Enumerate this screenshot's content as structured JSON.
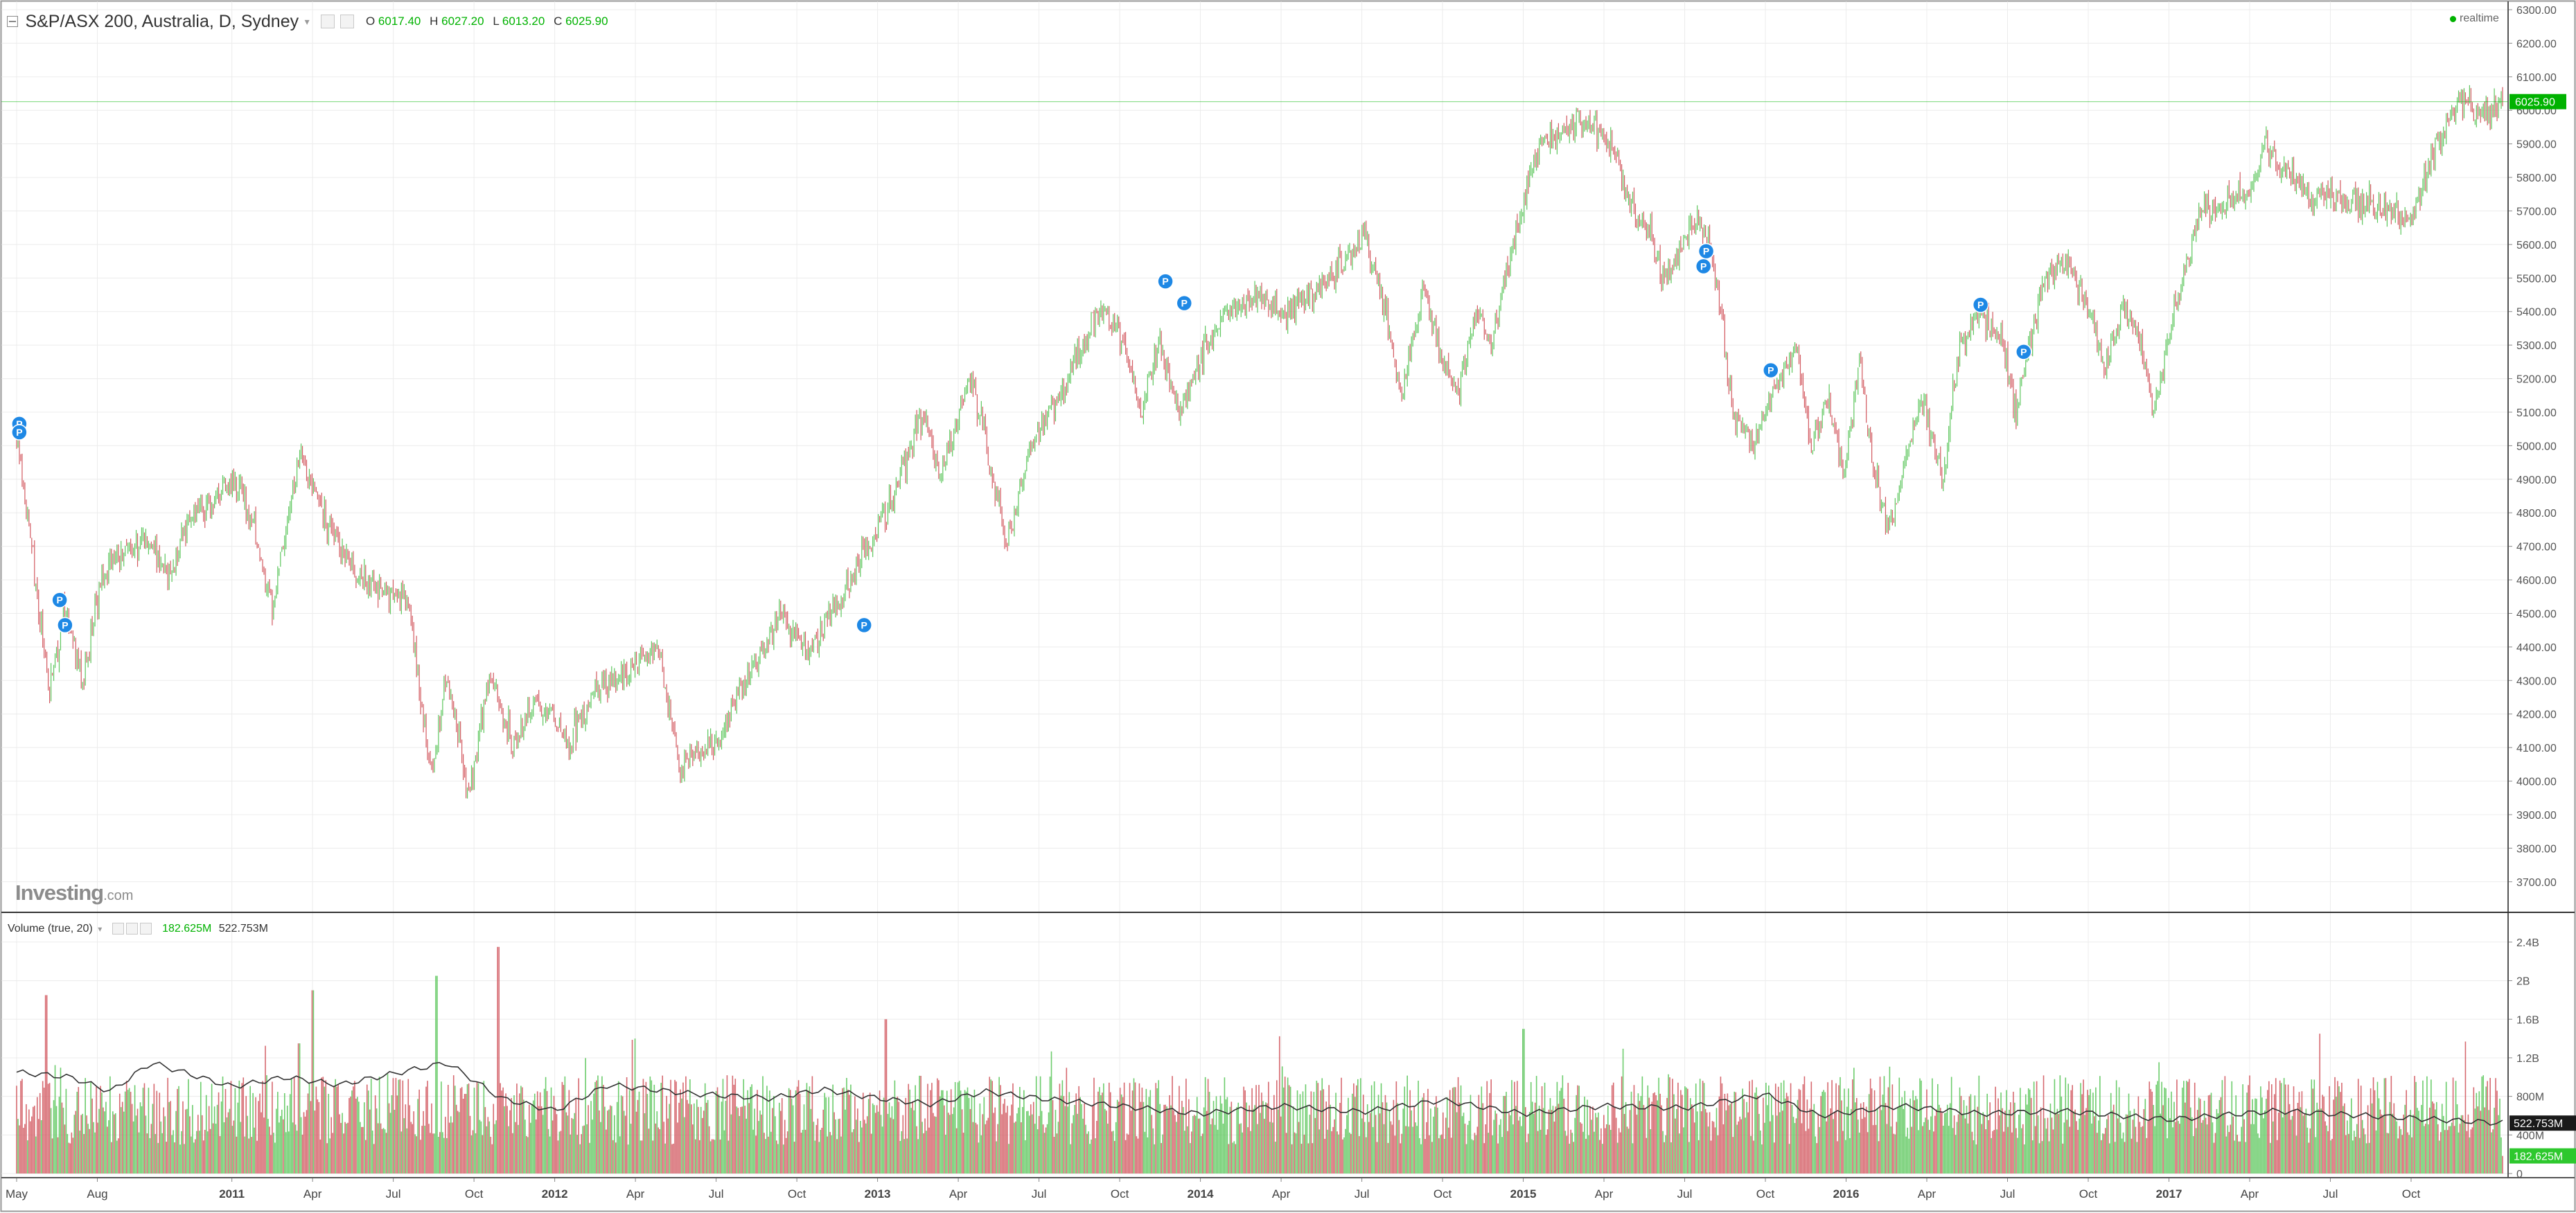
{
  "header": {
    "symbol_title": "S&P/ASX 200, Australia, D, Sydney",
    "o_label": "O",
    "o_value": "6017.40",
    "h_label": "H",
    "h_value": "6027.20",
    "l_label": "L",
    "l_value": "6013.20",
    "c_label": "C",
    "c_value": "6025.90",
    "realtime_label": "realtime"
  },
  "volume_header": {
    "title": "Volume (true, 20)",
    "volume_value": "182.625M",
    "ma_value": "522.753M"
  },
  "watermark": {
    "brand": "Investing",
    "suffix": ".com"
  },
  "colors": {
    "up": "#5cc65c",
    "down": "#d2585f",
    "price_line": "#00b200",
    "marker": "#1e88e5",
    "ma_line": "#333333",
    "grid": "#ececec"
  },
  "chart_data": [
    {
      "type": "candlestick",
      "interval": "D",
      "ylim": [
        3650,
        6300
      ],
      "ticks": [
        "3700.00",
        "3800.00",
        "3900.00",
        "4000.00",
        "4100.00",
        "4200.00",
        "4300.00",
        "4400.00",
        "4500.00",
        "4600.00",
        "4700.00",
        "4800.00",
        "4900.00",
        "5000.00",
        "5100.00",
        "5200.00",
        "5300.00",
        "5400.00",
        "5500.00",
        "5600.00",
        "5700.00",
        "5800.00",
        "5900.00",
        "6000.00",
        "6100.00",
        "6200.00",
        "6300.00"
      ],
      "last_price_label": "6025.90",
      "last_price": 6025.9,
      "x_tick_labels": [
        "May",
        "Aug",
        "2011",
        "Apr",
        "Jul",
        "Oct",
        "2012",
        "Apr",
        "Jul",
        "Oct",
        "2013",
        "Apr",
        "Jul",
        "Oct",
        "2014",
        "Apr",
        "Jul",
        "Oct",
        "2015",
        "Apr",
        "Jul",
        "Oct",
        "2016",
        "Apr",
        "Jul",
        "Oct",
        "2017",
        "Apr",
        "Jul",
        "Oct"
      ],
      "x_tick_months": [
        0,
        3,
        8,
        11,
        14,
        17,
        20,
        23,
        26,
        29,
        32,
        35,
        38,
        41,
        44,
        47,
        50,
        53,
        56,
        59,
        62,
        65,
        68,
        71,
        74,
        77,
        80,
        83,
        86,
        89
      ],
      "close_path": [
        {
          "t": 0,
          "v": 5020
        },
        {
          "t": 0.7,
          "v": 4600
        },
        {
          "t": 1.2,
          "v": 4250
        },
        {
          "t": 1.8,
          "v": 4520
        },
        {
          "t": 2.4,
          "v": 4300
        },
        {
          "t": 3.2,
          "v": 4620
        },
        {
          "t": 4.2,
          "v": 4700
        },
        {
          "t": 5.0,
          "v": 4720
        },
        {
          "t": 5.7,
          "v": 4600
        },
        {
          "t": 6.4,
          "v": 4790
        },
        {
          "t": 7.2,
          "v": 4830
        },
        {
          "t": 8.3,
          "v": 4900
        },
        {
          "t": 8.9,
          "v": 4720
        },
        {
          "t": 9.5,
          "v": 4520
        },
        {
          "t": 10.5,
          "v": 4960
        },
        {
          "t": 11.4,
          "v": 4800
        },
        {
          "t": 12.4,
          "v": 4650
        },
        {
          "t": 13.3,
          "v": 4570
        },
        {
          "t": 14.5,
          "v": 4560
        },
        {
          "t": 15.4,
          "v": 4000
        },
        {
          "t": 16.0,
          "v": 4330
        },
        {
          "t": 16.8,
          "v": 3950
        },
        {
          "t": 17.6,
          "v": 4320
        },
        {
          "t": 18.5,
          "v": 4100
        },
        {
          "t": 19.3,
          "v": 4250
        },
        {
          "t": 20.5,
          "v": 4120
        },
        {
          "t": 21.6,
          "v": 4270
        },
        {
          "t": 22.8,
          "v": 4330
        },
        {
          "t": 23.8,
          "v": 4400
        },
        {
          "t": 24.6,
          "v": 4050
        },
        {
          "t": 25.3,
          "v": 4070
        },
        {
          "t": 26.2,
          "v": 4150
        },
        {
          "t": 27.3,
          "v": 4330
        },
        {
          "t": 28.4,
          "v": 4500
        },
        {
          "t": 29.4,
          "v": 4380
        },
        {
          "t": 30.3,
          "v": 4500
        },
        {
          "t": 31.6,
          "v": 4700
        },
        {
          "t": 32.6,
          "v": 4850
        },
        {
          "t": 33.7,
          "v": 5100
        },
        {
          "t": 34.3,
          "v": 4900
        },
        {
          "t": 35.4,
          "v": 5200
        },
        {
          "t": 35.8,
          "v": 5100
        },
        {
          "t": 36.8,
          "v": 4700
        },
        {
          "t": 37.7,
          "v": 5000
        },
        {
          "t": 38.8,
          "v": 5150
        },
        {
          "t": 39.6,
          "v": 5300
        },
        {
          "t": 40.4,
          "v": 5420
        },
        {
          "t": 41.2,
          "v": 5300
        },
        {
          "t": 41.8,
          "v": 5080
        },
        {
          "t": 42.5,
          "v": 5320
        },
        {
          "t": 43.2,
          "v": 5100
        },
        {
          "t": 44.2,
          "v": 5300
        },
        {
          "t": 45.2,
          "v": 5420
        },
        {
          "t": 46.2,
          "v": 5440
        },
        {
          "t": 47.2,
          "v": 5400
        },
        {
          "t": 48.2,
          "v": 5440
        },
        {
          "t": 49.2,
          "v": 5550
        },
        {
          "t": 50.1,
          "v": 5620
        },
        {
          "t": 50.9,
          "v": 5400
        },
        {
          "t": 51.5,
          "v": 5150
        },
        {
          "t": 52.3,
          "v": 5480
        },
        {
          "t": 53.0,
          "v": 5260
        },
        {
          "t": 53.6,
          "v": 5150
        },
        {
          "t": 54.2,
          "v": 5400
        },
        {
          "t": 54.8,
          "v": 5300
        },
        {
          "t": 55.6,
          "v": 5600
        },
        {
          "t": 56.6,
          "v": 5900
        },
        {
          "t": 57.4,
          "v": 5930
        },
        {
          "t": 58.3,
          "v": 5970
        },
        {
          "t": 59.3,
          "v": 5900
        },
        {
          "t": 60.0,
          "v": 5720
        },
        {
          "t": 60.7,
          "v": 5630
        },
        {
          "t": 61.3,
          "v": 5480
        },
        {
          "t": 62.0,
          "v": 5600
        },
        {
          "t": 62.6,
          "v": 5680
        },
        {
          "t": 63.2,
          "v": 5500
        },
        {
          "t": 63.8,
          "v": 5100
        },
        {
          "t": 64.4,
          "v": 5000
        },
        {
          "t": 65.3,
          "v": 5150
        },
        {
          "t": 66.2,
          "v": 5300
        },
        {
          "t": 66.7,
          "v": 5000
        },
        {
          "t": 67.3,
          "v": 5150
        },
        {
          "t": 67.9,
          "v": 4900
        },
        {
          "t": 68.5,
          "v": 5250
        },
        {
          "t": 69.0,
          "v": 4950
        },
        {
          "t": 69.6,
          "v": 4750
        },
        {
          "t": 70.3,
          "v": 5000
        },
        {
          "t": 70.8,
          "v": 5150
        },
        {
          "t": 71.6,
          "v": 4900
        },
        {
          "t": 72.2,
          "v": 5300
        },
        {
          "t": 73.0,
          "v": 5400
        },
        {
          "t": 73.8,
          "v": 5300
        },
        {
          "t": 74.3,
          "v": 5100
        },
        {
          "t": 74.8,
          "v": 5300
        },
        {
          "t": 75.4,
          "v": 5500
        },
        {
          "t": 76.2,
          "v": 5550
        },
        {
          "t": 77.0,
          "v": 5400
        },
        {
          "t": 77.6,
          "v": 5230
        },
        {
          "t": 78.3,
          "v": 5430
        },
        {
          "t": 79.0,
          "v": 5300
        },
        {
          "t": 79.4,
          "v": 5100
        },
        {
          "t": 80.2,
          "v": 5400
        },
        {
          "t": 81.2,
          "v": 5700
        },
        {
          "t": 82.1,
          "v": 5720
        },
        {
          "t": 83.0,
          "v": 5750
        },
        {
          "t": 83.6,
          "v": 5900
        },
        {
          "t": 84.4,
          "v": 5800
        },
        {
          "t": 85.2,
          "v": 5750
        },
        {
          "t": 86.4,
          "v": 5730
        },
        {
          "t": 87.4,
          "v": 5730
        },
        {
          "t": 88.4,
          "v": 5700
        },
        {
          "t": 89.0,
          "v": 5680
        },
        {
          "t": 90.0,
          "v": 5900
        },
        {
          "t": 90.8,
          "v": 6030
        },
        {
          "t": 91.5,
          "v": 5980
        },
        {
          "t": 92.4,
          "v": 6025
        }
      ],
      "markers": [
        {
          "t": 0.1,
          "v": 5065,
          "label": "P"
        },
        {
          "t": 0.1,
          "v": 5040,
          "label": "P"
        },
        {
          "t": 1.6,
          "v": 4540,
          "label": "P"
        },
        {
          "t": 1.8,
          "v": 4465,
          "label": "P"
        },
        {
          "t": 31.5,
          "v": 4465,
          "label": "P"
        },
        {
          "t": 42.7,
          "v": 5490,
          "label": "P"
        },
        {
          "t": 43.4,
          "v": 5425,
          "label": "P"
        },
        {
          "t": 62.8,
          "v": 5580,
          "label": "P"
        },
        {
          "t": 62.7,
          "v": 5535,
          "label": "P"
        },
        {
          "t": 65.2,
          "v": 5225,
          "label": "P"
        },
        {
          "t": 73.0,
          "v": 5420,
          "label": "P"
        },
        {
          "t": 74.6,
          "v": 5280,
          "label": "P"
        }
      ]
    },
    {
      "type": "bar",
      "title": "Volume (true, 20)",
      "ylim": [
        0,
        2500000000
      ],
      "tick_labels": [
        "0",
        "400M",
        "800M",
        "1.2B",
        "1.6B",
        "2B",
        "2.4B"
      ],
      "tick_values": [
        0,
        400000000,
        800000000,
        1200000000,
        1600000000,
        2000000000,
        2400000000
      ],
      "last_volume_label": "182.625M",
      "last_volume": 182625000,
      "ma_label": "522.753M",
      "ma_value": 522753000,
      "typical_range": [
        300000000,
        1100000000
      ],
      "spikes": [
        {
          "t": 17.9,
          "v": 2350000000
        },
        {
          "t": 15.6,
          "v": 2050000000
        },
        {
          "t": 11.0,
          "v": 1900000000
        },
        {
          "t": 1.1,
          "v": 1850000000
        },
        {
          "t": 32.3,
          "v": 1600000000
        },
        {
          "t": 85.6,
          "v": 1450000000
        },
        {
          "t": 56.0,
          "v": 1500000000
        },
        {
          "t": 10.5,
          "v": 1350000000
        },
        {
          "t": 23.0,
          "v": 1400000000
        }
      ],
      "ma_path": [
        {
          "t": 0,
          "v": 1050000000
        },
        {
          "t": 2,
          "v": 1000000000
        },
        {
          "t": 3.5,
          "v": 850000000
        },
        {
          "t": 5,
          "v": 1150000000
        },
        {
          "t": 8,
          "v": 900000000
        },
        {
          "t": 10,
          "v": 1000000000
        },
        {
          "t": 12,
          "v": 920000000
        },
        {
          "t": 16,
          "v": 1150000000
        },
        {
          "t": 18,
          "v": 780000000
        },
        {
          "t": 20,
          "v": 650000000
        },
        {
          "t": 22,
          "v": 920000000
        },
        {
          "t": 25,
          "v": 830000000
        },
        {
          "t": 28,
          "v": 780000000
        },
        {
          "t": 30,
          "v": 870000000
        },
        {
          "t": 32,
          "v": 780000000
        },
        {
          "t": 34,
          "v": 720000000
        },
        {
          "t": 36,
          "v": 850000000
        },
        {
          "t": 38,
          "v": 780000000
        },
        {
          "t": 41,
          "v": 700000000
        },
        {
          "t": 44,
          "v": 620000000
        },
        {
          "t": 47,
          "v": 700000000
        },
        {
          "t": 50,
          "v": 640000000
        },
        {
          "t": 53,
          "v": 760000000
        },
        {
          "t": 56,
          "v": 620000000
        },
        {
          "t": 59,
          "v": 700000000
        },
        {
          "t": 62,
          "v": 680000000
        },
        {
          "t": 65,
          "v": 820000000
        },
        {
          "t": 67,
          "v": 600000000
        },
        {
          "t": 70,
          "v": 700000000
        },
        {
          "t": 73,
          "v": 620000000
        },
        {
          "t": 76,
          "v": 650000000
        },
        {
          "t": 80,
          "v": 560000000
        },
        {
          "t": 84,
          "v": 650000000
        },
        {
          "t": 88,
          "v": 590000000
        },
        {
          "t": 92.4,
          "v": 522753000
        }
      ]
    }
  ]
}
